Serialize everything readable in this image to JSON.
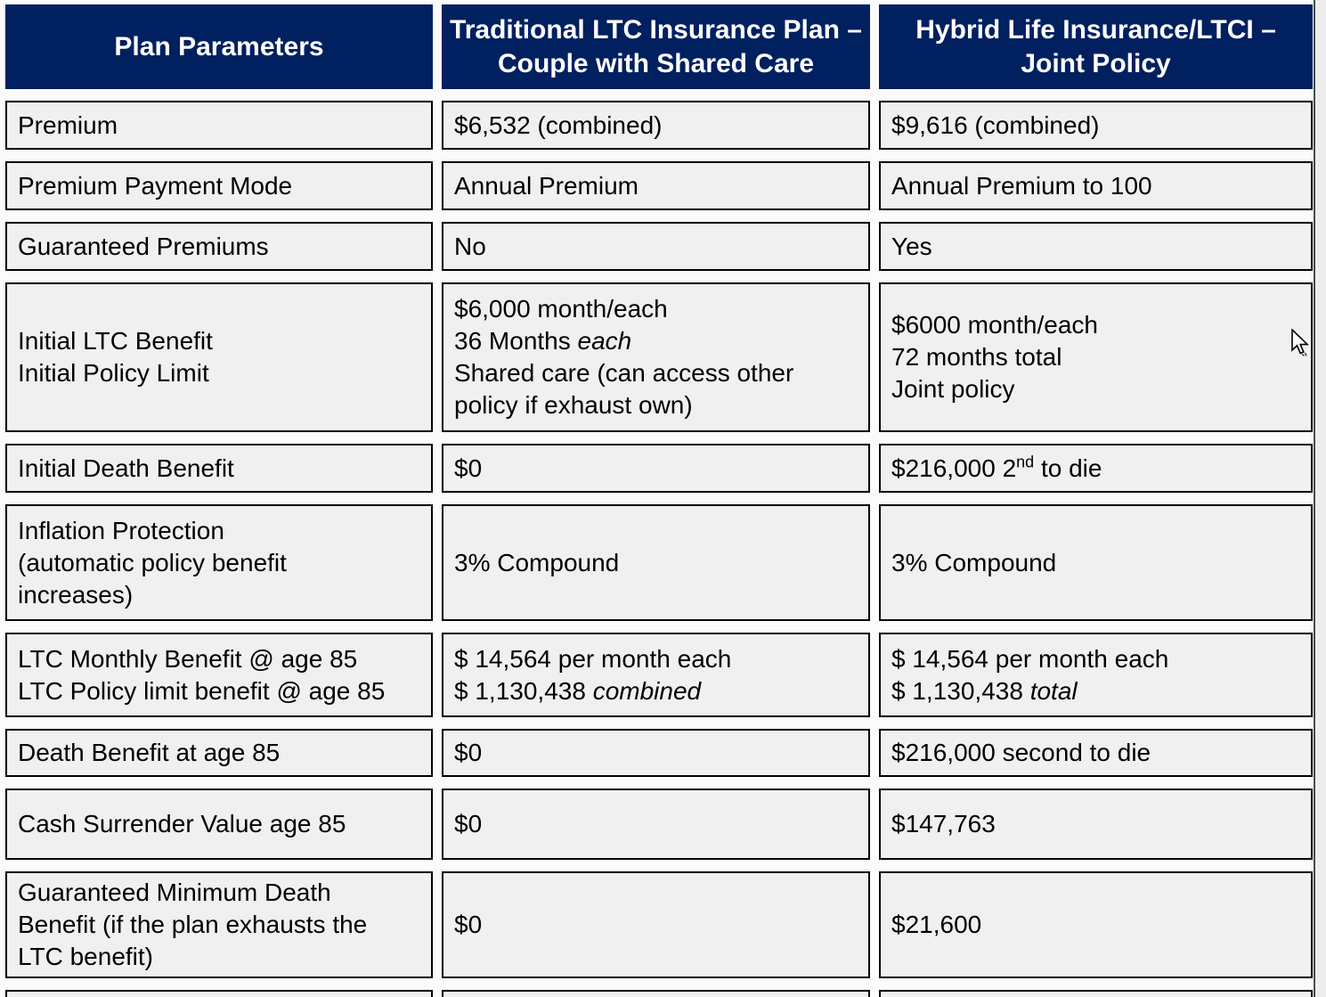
{
  "page": {
    "background": "#fbfbfb",
    "right_gutter_color": "#ededed",
    "mouse_cursor": "arrow-pointer"
  },
  "table": {
    "cell_bg_color": "#f0f0f0",
    "cell_border_color": "#000000",
    "header": {
      "bg_color": "#002060",
      "text_color": "#ffffff",
      "cells": [
        {
          "lines": [
            [
              {
                "t": "Plan Parameters"
              }
            ]
          ]
        },
        {
          "lines": [
            [
              {
                "t": "Traditional LTC Insurance Plan –"
              }
            ],
            [
              {
                "t": "Couple with Shared Care"
              }
            ]
          ]
        },
        {
          "lines": [
            [
              {
                "t": "Hybrid Life Insurance/LTCI –"
              }
            ],
            [
              {
                "t": "Joint Policy"
              }
            ]
          ]
        }
      ]
    },
    "rows": [
      {
        "id": "premium",
        "cells": [
          {
            "lines": [
              [
                {
                  "t": "Premium"
                }
              ]
            ]
          },
          {
            "lines": [
              [
                {
                  "t": "$6,532 (combined)"
                }
              ]
            ]
          },
          {
            "lines": [
              [
                {
                  "t": "$9,616 (combined)"
                }
              ]
            ]
          }
        ]
      },
      {
        "id": "premium-payment-mode",
        "cells": [
          {
            "lines": [
              [
                {
                  "t": "Premium Payment Mode"
                }
              ]
            ]
          },
          {
            "lines": [
              [
                {
                  "t": "Annual Premium"
                }
              ]
            ]
          },
          {
            "lines": [
              [
                {
                  "t": "Annual Premium to 100"
                }
              ]
            ]
          }
        ]
      },
      {
        "id": "guaranteed-premiums",
        "cells": [
          {
            "lines": [
              [
                {
                  "t": "Guaranteed Premiums"
                }
              ]
            ]
          },
          {
            "lines": [
              [
                {
                  "t": "No"
                }
              ]
            ]
          },
          {
            "lines": [
              [
                {
                  "t": "Yes"
                }
              ]
            ]
          }
        ]
      },
      {
        "id": "initial-ltc-benefit",
        "cells": [
          {
            "lines": [
              [
                {
                  "t": "Initial LTC Benefit"
                }
              ],
              [
                {
                  "t": "Initial Policy Limit"
                }
              ]
            ]
          },
          {
            "lines": [
              [
                {
                  "t": "$6,000 month/each"
                }
              ],
              [
                {
                  "t": "36 Months "
                },
                {
                  "t": "each",
                  "i": true
                }
              ],
              [
                {
                  "t": "Shared care (can access other"
                }
              ],
              [
                {
                  "t": "policy if exhaust own)"
                }
              ]
            ]
          },
          {
            "lines": [
              [
                {
                  "t": "$6000 month/each"
                }
              ],
              [
                {
                  "t": "72 months total"
                }
              ],
              [
                {
                  "t": "Joint policy"
                }
              ]
            ]
          }
        ]
      },
      {
        "id": "initial-death-benefit",
        "cells": [
          {
            "lines": [
              [
                {
                  "t": "Initial Death Benefit"
                }
              ]
            ]
          },
          {
            "lines": [
              [
                {
                  "t": "$0"
                }
              ]
            ]
          },
          {
            "lines": [
              [
                {
                  "t": "$216,000 2"
                },
                {
                  "t": "nd",
                  "sup": true
                },
                {
                  "t": " to die"
                }
              ]
            ]
          }
        ]
      },
      {
        "id": "inflation-protection",
        "cells": [
          {
            "lines": [
              [
                {
                  "t": "Inflation Protection"
                }
              ],
              [
                {
                  "t": "(automatic policy benefit"
                }
              ],
              [
                {
                  "t": "increases)"
                }
              ]
            ]
          },
          {
            "lines": [
              [
                {
                  "t": "3% Compound"
                }
              ]
            ]
          },
          {
            "lines": [
              [
                {
                  "t": "3% Compound"
                }
              ]
            ]
          }
        ]
      },
      {
        "id": "ltc-benefit-at-age-85",
        "cells": [
          {
            "lines": [
              [
                {
                  "t": "LTC Monthly Benefit @ age 85"
                }
              ],
              [
                {
                  "t": "LTC Policy limit benefit @ age 85"
                }
              ]
            ]
          },
          {
            "lines": [
              [
                {
                  "t": "$ 14,564 per month each"
                }
              ],
              [
                {
                  "t": "$ 1,130,438 "
                },
                {
                  "t": "combined",
                  "i": true
                }
              ]
            ]
          },
          {
            "lines": [
              [
                {
                  "t": "$ 14,564 per month each"
                }
              ],
              [
                {
                  "t": "$ 1,130,438 "
                },
                {
                  "t": "total",
                  "i": true
                }
              ]
            ]
          }
        ]
      },
      {
        "id": "death-benefit-at-age-85",
        "cells": [
          {
            "lines": [
              [
                {
                  "t": "Death Benefit at age 85"
                }
              ]
            ]
          },
          {
            "lines": [
              [
                {
                  "t": "$0"
                }
              ]
            ]
          },
          {
            "lines": [
              [
                {
                  "t": "$216,000 second to die"
                }
              ]
            ]
          }
        ]
      },
      {
        "id": "cash-surrender-value-age-85",
        "cells": [
          {
            "lines": [
              [
                {
                  "t": "Cash Surrender Value age 85"
                }
              ]
            ]
          },
          {
            "lines": [
              [
                {
                  "t": "$0"
                }
              ]
            ]
          },
          {
            "lines": [
              [
                {
                  "t": "$147,763"
                }
              ]
            ]
          }
        ]
      },
      {
        "id": "guaranteed-minimum-death-benefit",
        "cells": [
          {
            "lines": [
              [
                {
                  "t": "Guaranteed Minimum Death"
                }
              ],
              [
                {
                  "t": "Benefit (if the plan exhausts the"
                }
              ],
              [
                {
                  "t": "LTC benefit)"
                }
              ]
            ]
          },
          {
            "lines": [
              [
                {
                  "t": "$0"
                }
              ]
            ]
          },
          {
            "lines": [
              [
                {
                  "t": "$21,600"
                }
              ]
            ]
          }
        ]
      },
      {
        "id": "partial-next-row",
        "cells": [
          {
            "lines": []
          },
          {
            "lines": []
          },
          {
            "lines": []
          }
        ]
      }
    ]
  }
}
